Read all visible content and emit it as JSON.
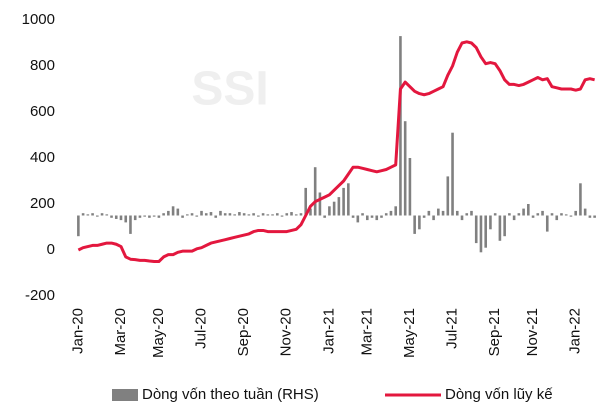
{
  "chart_data": {
    "type": "combo",
    "watermark": "SSI",
    "categories": [
      "Jan-20",
      null,
      null,
      null,
      null,
      null,
      null,
      null,
      null,
      "Mar-20",
      null,
      null,
      null,
      null,
      null,
      null,
      null,
      "May-20",
      null,
      null,
      null,
      null,
      null,
      null,
      null,
      null,
      "Jul-20",
      null,
      null,
      null,
      null,
      null,
      null,
      null,
      null,
      "Sep-20",
      null,
      null,
      null,
      null,
      null,
      null,
      null,
      null,
      "Nov-20",
      null,
      null,
      null,
      null,
      null,
      null,
      null,
      null,
      "Jan-21",
      null,
      null,
      null,
      null,
      null,
      null,
      null,
      "Mar-21",
      null,
      null,
      null,
      null,
      null,
      null,
      null,
      null,
      "May-21",
      null,
      null,
      null,
      null,
      null,
      null,
      null,
      null,
      "Jul-21",
      null,
      null,
      null,
      null,
      null,
      null,
      null,
      null,
      "Sep-21",
      null,
      null,
      null,
      null,
      null,
      null,
      null,
      "Nov-21",
      null,
      null,
      null,
      null,
      null,
      null,
      null,
      null,
      "Jan-22",
      null,
      null,
      null,
      null
    ],
    "ylim": [
      -200,
      1000
    ],
    "yticks": [
      -200,
      0,
      200,
      400,
      600,
      800,
      1000
    ],
    "y2lim": [
      -350,
      850
    ],
    "series": [
      {
        "name": "Dòng vốn theo tuần (RHS)",
        "type": "bar",
        "axis": "y2",
        "color": "#808080",
        "values": [
          -90,
          10,
          5,
          10,
          -5,
          10,
          5,
          -10,
          -15,
          -20,
          -30,
          -80,
          -20,
          -10,
          -5,
          -10,
          -5,
          -10,
          10,
          20,
          40,
          30,
          -10,
          5,
          10,
          -5,
          20,
          10,
          15,
          -10,
          20,
          10,
          10,
          5,
          15,
          10,
          5,
          10,
          -5,
          10,
          5,
          5,
          10,
          -5,
          10,
          15,
          5,
          10,
          120,
          30,
          210,
          100,
          -10,
          40,
          60,
          80,
          120,
          140,
          -10,
          -30,
          10,
          -20,
          -10,
          -20,
          -10,
          10,
          20,
          40,
          780,
          410,
          250,
          -80,
          -60,
          -10,
          20,
          -20,
          30,
          20,
          170,
          360,
          20,
          -20,
          10,
          20,
          -120,
          -160,
          -140,
          -60,
          10,
          -110,
          -90,
          10,
          -20,
          10,
          30,
          50,
          -10,
          10,
          20,
          -70,
          10,
          -20,
          10,
          5,
          -5,
          20,
          140,
          30,
          -10,
          -10
        ]
      },
      {
        "name": "Dòng vốn lũy kế",
        "type": "line",
        "color": "#e3173e",
        "values": [
          0,
          10,
          15,
          20,
          20,
          25,
          30,
          30,
          25,
          15,
          -30,
          -40,
          -42,
          -45,
          -45,
          -48,
          -50,
          -50,
          -30,
          -20,
          -20,
          -10,
          -5,
          -5,
          -5,
          5,
          10,
          20,
          30,
          35,
          40,
          45,
          50,
          55,
          60,
          65,
          70,
          80,
          85,
          85,
          80,
          80,
          80,
          80,
          80,
          85,
          90,
          110,
          150,
          190,
          210,
          220,
          230,
          240,
          260,
          280,
          300,
          330,
          360,
          360,
          355,
          350,
          345,
          340,
          345,
          350,
          360,
          370,
          700,
          730,
          710,
          690,
          680,
          675,
          680,
          690,
          700,
          710,
          760,
          800,
          860,
          900,
          905,
          900,
          880,
          840,
          810,
          815,
          810,
          780,
          740,
          720,
          720,
          715,
          720,
          730,
          740,
          750,
          740,
          745,
          710,
          705,
          700,
          700,
          700,
          695,
          700,
          740,
          745,
          740
        ]
      }
    ]
  }
}
